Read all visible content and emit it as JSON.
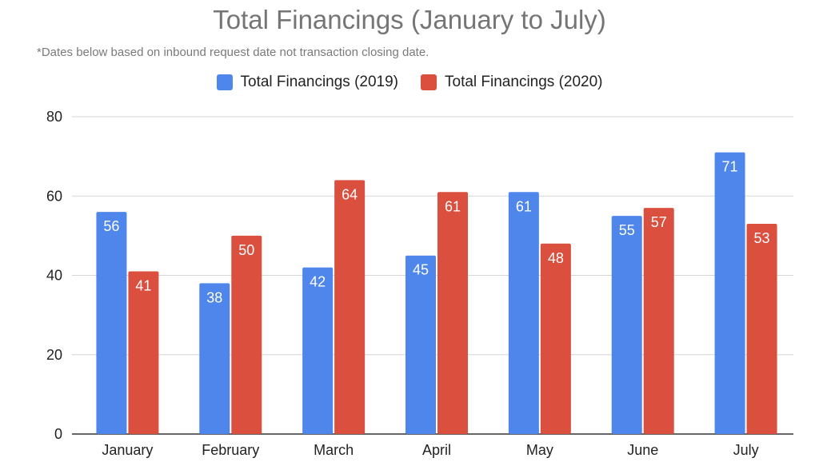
{
  "chart_data": {
    "type": "bar",
    "title": "Total Financings (January to July)",
    "subtitle": "*Dates below based on inbound request date not transaction closing date.",
    "categories": [
      "January",
      "February",
      "March",
      "April",
      "May",
      "June",
      "July"
    ],
    "series": [
      {
        "name": "Total Financings (2019)",
        "color": "#4f86ec",
        "values": [
          56,
          38,
          42,
          45,
          61,
          55,
          71
        ]
      },
      {
        "name": "Total Financings (2020)",
        "color": "#db4f3e",
        "values": [
          41,
          50,
          64,
          61,
          48,
          57,
          53
        ]
      }
    ],
    "yticks": [
      0,
      20,
      40,
      60,
      80
    ],
    "ylim": [
      0,
      80
    ],
    "xlabel": "",
    "ylabel": "",
    "grid": true,
    "legend_position": "top-center"
  }
}
